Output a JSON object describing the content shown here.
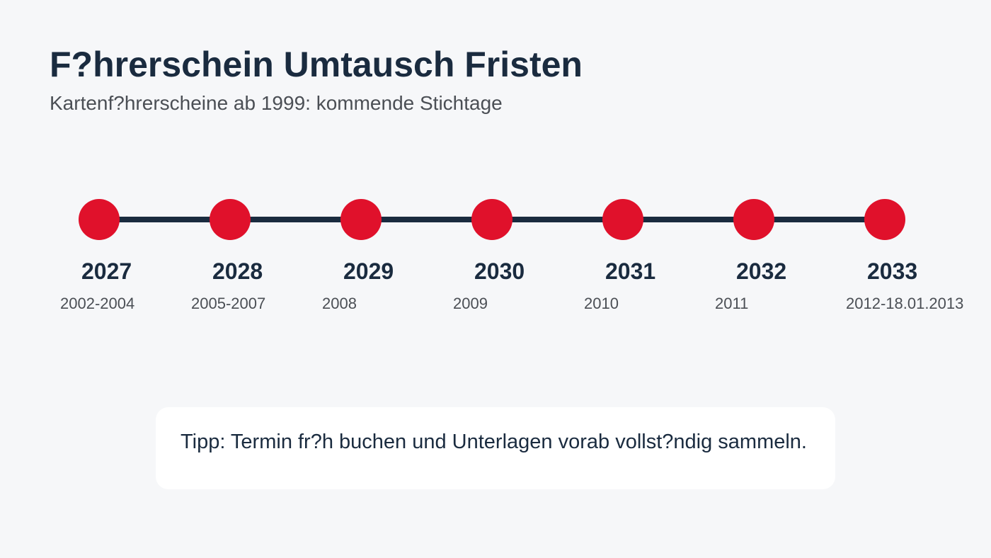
{
  "header": {
    "title": "F?hrerschein Umtausch Fristen",
    "subtitle": "Kartenf?hrerscheine ab 1999: kommende Stichtage"
  },
  "colors": {
    "accent": "#e0112b",
    "line": "#1a2b3f",
    "text_dark": "#1a2b3f",
    "text_muted": "#4b4f55",
    "background": "#f6f7f9",
    "card": "#ffffff"
  },
  "timeline": {
    "milestones": [
      {
        "year": "2027",
        "range": "2002-2004"
      },
      {
        "year": "2028",
        "range": "2005-2007"
      },
      {
        "year": "2029",
        "range": "2008"
      },
      {
        "year": "2030",
        "range": "2009"
      },
      {
        "year": "2031",
        "range": "2010"
      },
      {
        "year": "2032",
        "range": "2011"
      },
      {
        "year": "2033",
        "range": "2012-18.01.2013"
      }
    ]
  },
  "tip": {
    "text": "Tipp: Termin fr?h buchen und Unterlagen vorab vollst?ndig sammeln."
  }
}
